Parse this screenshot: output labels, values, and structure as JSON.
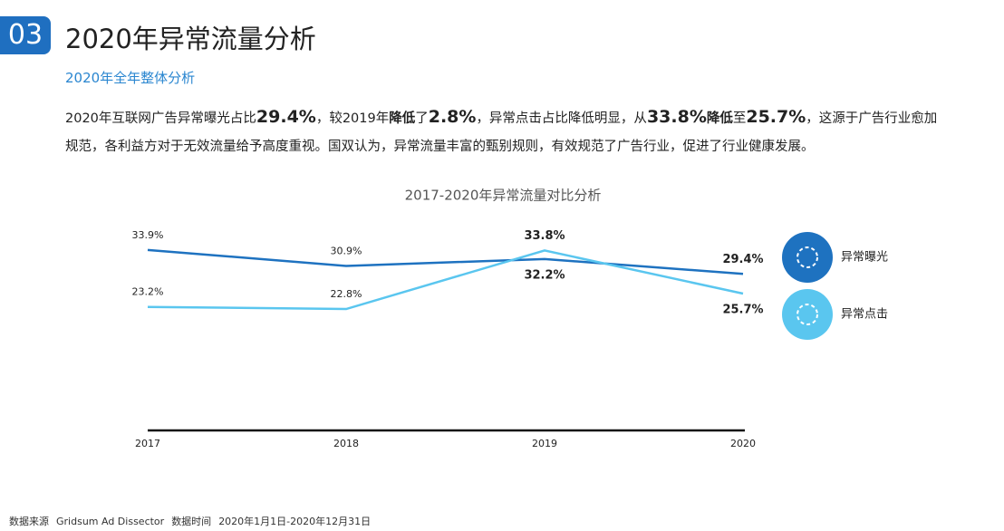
{
  "header": {
    "number": "03",
    "title": "2020年异常流量分析",
    "subtitle": "2020年全年整体分析"
  },
  "body": {
    "segments": [
      "2020年互联网广告异常曝光占比",
      "29.4%",
      "，较2019年",
      "降低",
      "了",
      "2.8%",
      "，异常点击占比降低明显，从",
      "33.8%",
      "降低",
      "至",
      "25.7%",
      "，这源于广告行业愈加规范，各利益方对于无效流量给予高度重视。国双认为，异常流量丰富的甄别规则，有效规范了广告行业，促进了行业健康发展。"
    ]
  },
  "chart_data": {
    "type": "line",
    "title": "2017-2020年异常流量对比分析",
    "categories": [
      "2017",
      "2018",
      "2019",
      "2020"
    ],
    "series": [
      {
        "name": "异常曝光",
        "color": "#1e72c0",
        "values": [
          33.9,
          30.9,
          32.2,
          29.4
        ],
        "value_labels": [
          "33.9%",
          "30.9%",
          "32.2%",
          "29.4%"
        ]
      },
      {
        "name": "异常点击",
        "color": "#5ac6ef",
        "values": [
          23.2,
          22.8,
          33.8,
          25.7
        ],
        "value_labels": [
          "23.2%",
          "22.8%",
          "33.8%",
          "25.7%"
        ]
      }
    ],
    "ylim": [
      0,
      40
    ],
    "legend": "right"
  },
  "footer": {
    "source_label": "数据来源",
    "source": "Gridsum Ad Dissector",
    "time_label": "数据时间",
    "time": "2020年1月1日-2020年12月31日"
  }
}
